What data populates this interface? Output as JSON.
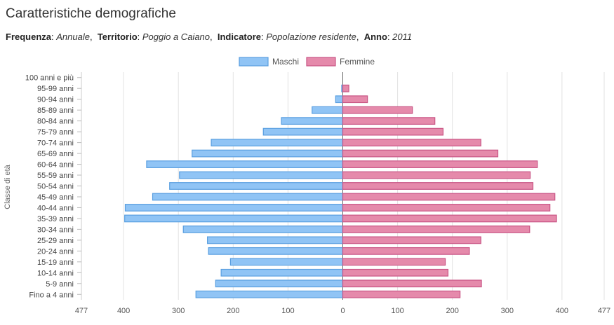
{
  "header": {
    "title": "Caratteristiche demografiche",
    "freq_label": "Frequenza",
    "freq_value": "Annuale",
    "terr_label": "Territorio",
    "terr_value": "Poggio a Caiano",
    "ind_label": "Indicatore",
    "ind_value": "Popolazione residente",
    "year_label": "Anno",
    "year_value": "2011"
  },
  "chart_data": {
    "type": "bar",
    "orientation": "horizontal-population-pyramid",
    "title": "",
    "ylabel": "Classe di età",
    "xlim": [
      -477,
      477
    ],
    "x_ticks": [
      "477",
      "400",
      "300",
      "200",
      "100",
      "0",
      "100",
      "200",
      "300",
      "400",
      "477"
    ],
    "x_tick_values": [
      -477,
      -400,
      -300,
      -200,
      -100,
      0,
      100,
      200,
      300,
      400,
      477
    ],
    "legend_position": "top-center",
    "grid": true,
    "categories": [
      "100 anni e più",
      "95-99 anni",
      "90-94 anni",
      "85-89 anni",
      "80-84 anni",
      "75-79 anni",
      "70-74 anni",
      "65-69 anni",
      "60-64 anni",
      "55-59 anni",
      "50-54 anni",
      "45-49 anni",
      "40-44 anni",
      "35-39 anni",
      "30-34 anni",
      "25-29 anni",
      "20-24 anni",
      "15-19 anni",
      "10-14 anni",
      "5-9 anni",
      "Fino a 4 anni"
    ],
    "series": [
      {
        "name": "Maschi",
        "color": "#90c4f5",
        "border": "#5a9fe0",
        "values": [
          0,
          2,
          13,
          56,
          112,
          145,
          240,
          275,
          358,
          298,
          316,
          347,
          397,
          398,
          291,
          247,
          245,
          205,
          222,
          232,
          268
        ]
      },
      {
        "name": "Femmine",
        "color": "#e58aab",
        "border": "#c95585",
        "values": [
          0,
          11,
          45,
          127,
          168,
          183,
          252,
          283,
          355,
          342,
          347,
          387,
          378,
          390,
          341,
          252,
          231,
          187,
          192,
          253,
          214
        ]
      }
    ]
  }
}
